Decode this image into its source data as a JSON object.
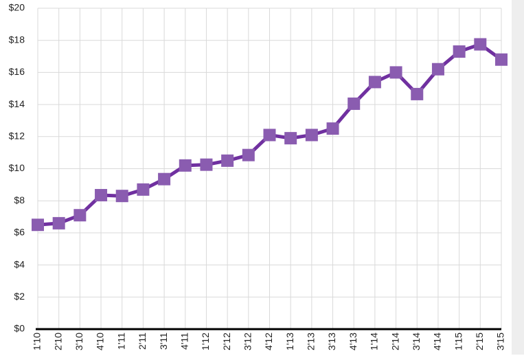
{
  "chart_data": {
    "type": "line",
    "categories": [
      "1'10",
      "2'10",
      "3'10",
      "4'10",
      "1'11",
      "2'11",
      "3'11",
      "4'11",
      "1'12",
      "2'12",
      "3'12",
      "4'12",
      "1'13",
      "2'13",
      "3'13",
      "4'13",
      "1'14",
      "2'14",
      "3'14",
      "4'14",
      "1'15",
      "2'15",
      "3'15"
    ],
    "series": [
      {
        "color": "#7030a0",
        "marker_color": "#8a5cb0",
        "values": [
          6.5,
          6.6,
          7.1,
          8.35,
          8.3,
          8.7,
          9.35,
          10.2,
          10.25,
          10.5,
          10.85,
          12.1,
          11.9,
          12.1,
          12.5,
          14.05,
          15.4,
          16.0,
          14.65,
          16.2,
          17.3,
          17.75,
          16.8
        ]
      }
    ],
    "ylim": [
      0,
      20
    ],
    "yticks": [
      {
        "value": 0,
        "label": "$0"
      },
      {
        "value": 2,
        "label": "$2"
      },
      {
        "value": 4,
        "label": "$4"
      },
      {
        "value": 6,
        "label": "$6"
      },
      {
        "value": 8,
        "label": "$8"
      },
      {
        "value": 10,
        "label": "$10"
      },
      {
        "value": 12,
        "label": "$12"
      },
      {
        "value": 14,
        "label": "$14"
      },
      {
        "value": 16,
        "label": "$16"
      },
      {
        "value": 18,
        "label": "$18"
      },
      {
        "value": 20,
        "label": "$20"
      }
    ],
    "grid": true
  }
}
